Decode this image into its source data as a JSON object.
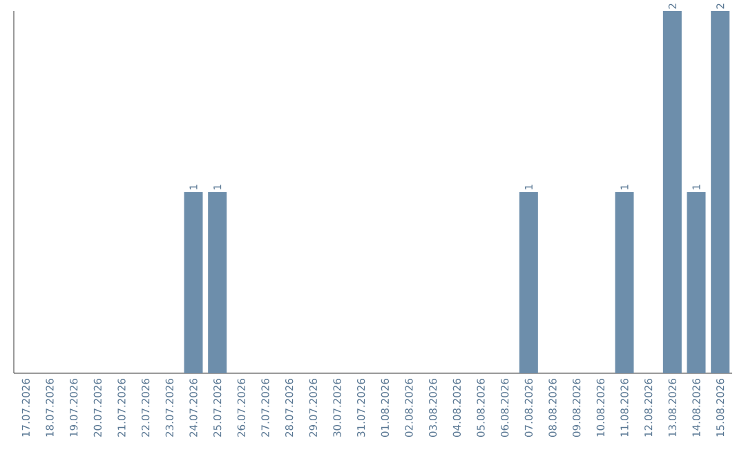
{
  "chart_data": {
    "type": "bar",
    "categories": [
      "17.07.2026",
      "18.07.2026",
      "19.07.2026",
      "20.07.2026",
      "21.07.2026",
      "22.07.2026",
      "23.07.2026",
      "24.07.2026",
      "25.07.2026",
      "26.07.2026",
      "27.07.2026",
      "28.07.2026",
      "29.07.2026",
      "30.07.2026",
      "31.07.2026",
      "01.08.2026",
      "02.08.2026",
      "03.08.2026",
      "04.08.2026",
      "05.08.2026",
      "06.08.2026",
      "07.08.2026",
      "08.08.2026",
      "09.08.2026",
      "10.08.2026",
      "11.08.2026",
      "12.08.2026",
      "13.08.2026",
      "14.08.2026",
      "15.08.2026"
    ],
    "values": [
      0,
      0,
      0,
      0,
      0,
      0,
      0,
      1,
      1,
      0,
      0,
      0,
      0,
      0,
      0,
      0,
      0,
      0,
      0,
      0,
      0,
      1,
      0,
      0,
      0,
      1,
      0,
      2,
      1,
      2
    ],
    "value_labels": [
      null,
      null,
      null,
      null,
      null,
      null,
      null,
      "1",
      "1",
      null,
      null,
      null,
      null,
      null,
      null,
      null,
      null,
      null,
      null,
      null,
      null,
      "1",
      null,
      null,
      null,
      "1",
      null,
      "2",
      "1",
      "2"
    ],
    "color": "#6d8eab",
    "tick_labels": "x"
  }
}
